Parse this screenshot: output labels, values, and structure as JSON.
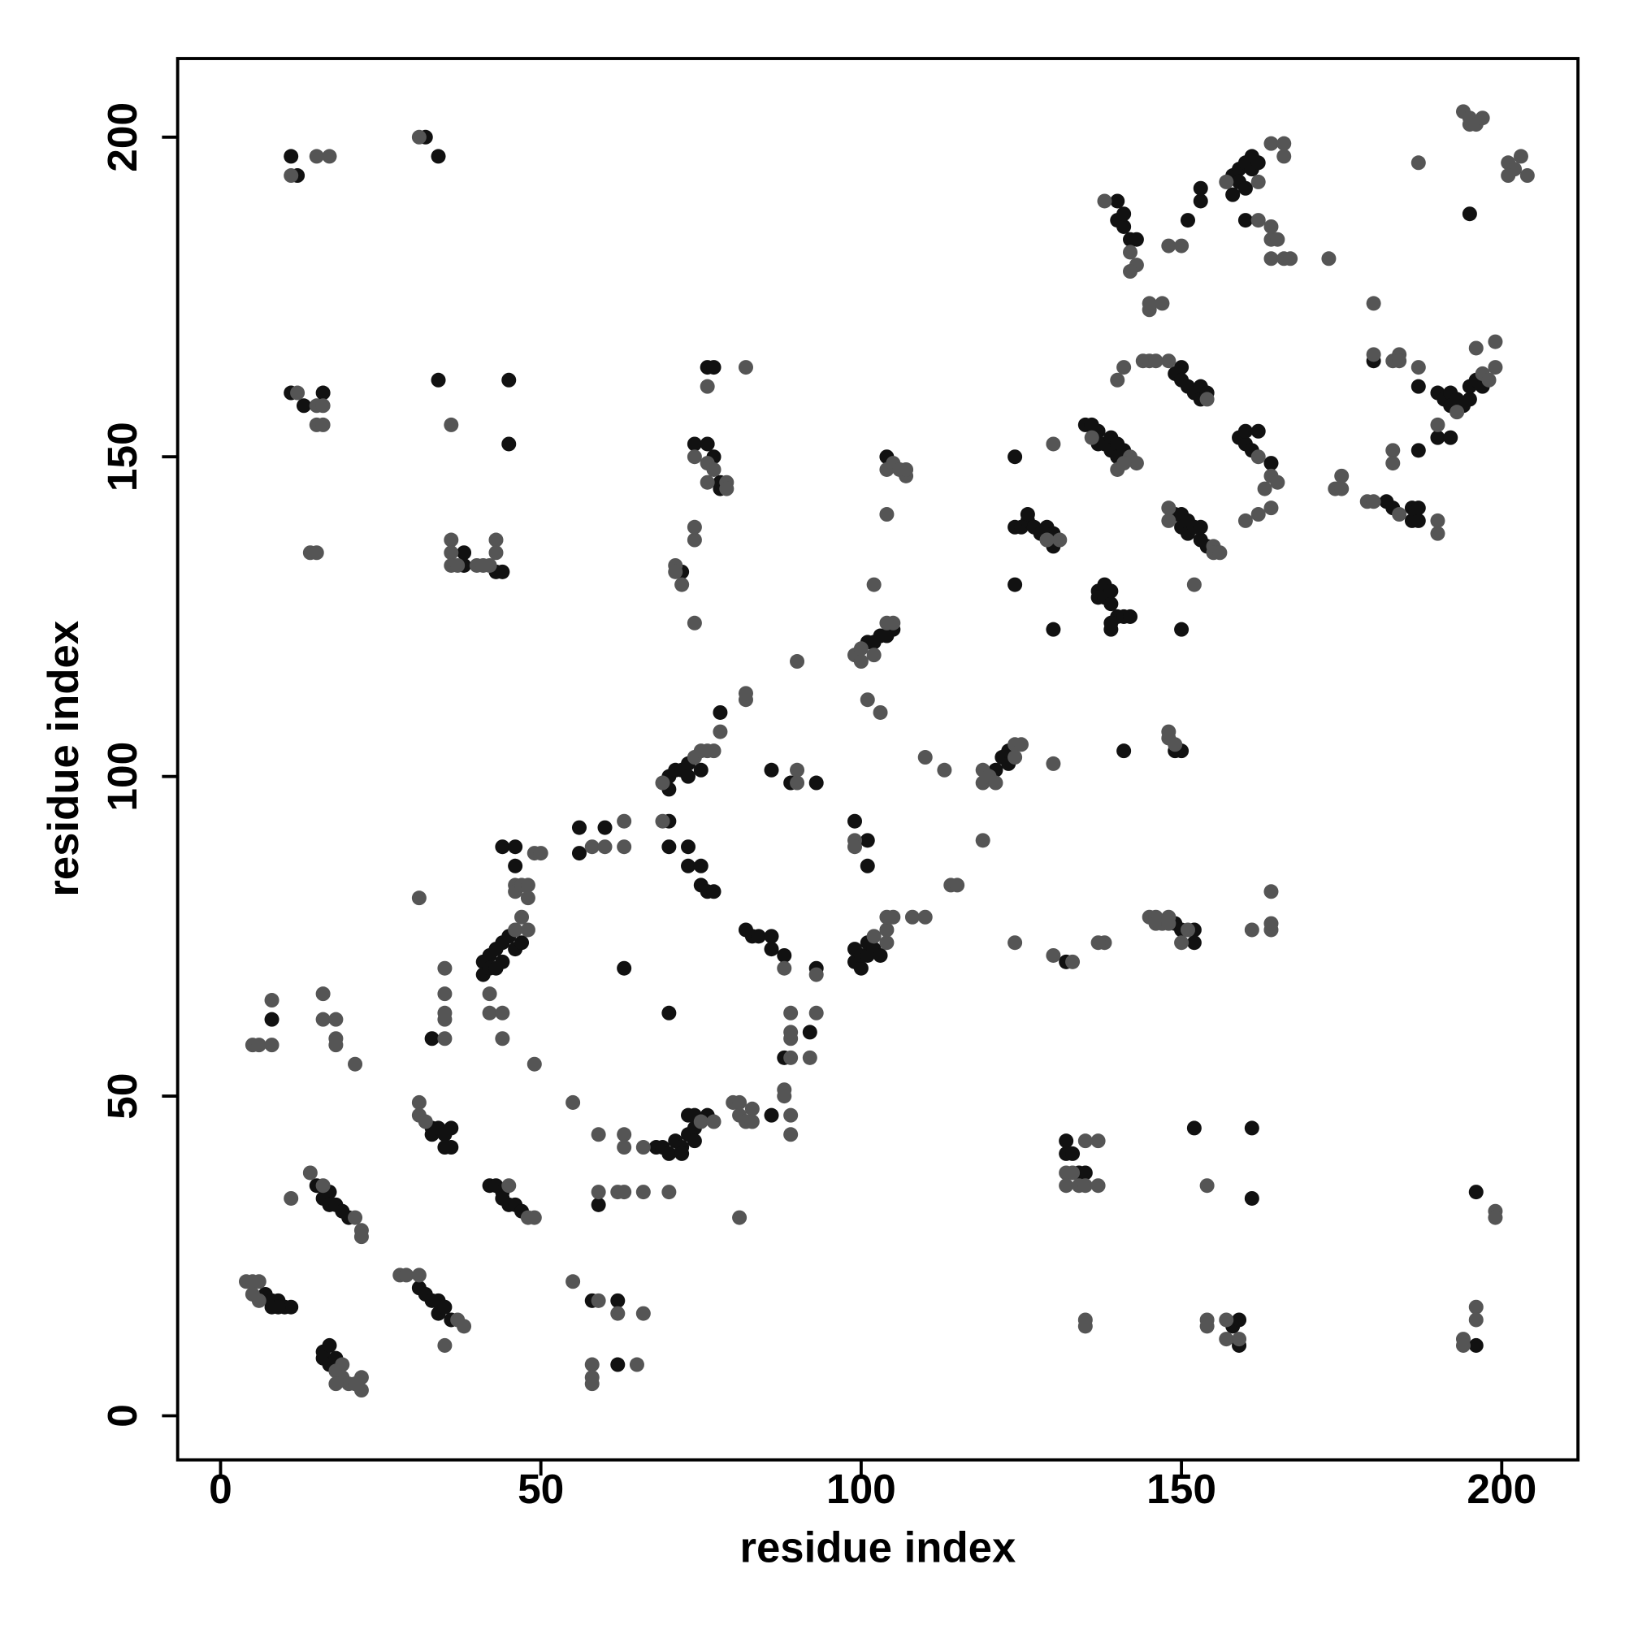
{
  "chart_data": {
    "type": "scatter",
    "xlabel": "residue index",
    "ylabel": "residue index",
    "xlim": [
      -6.7,
      211.9
    ],
    "ylim": [
      -6.9,
      212.3
    ],
    "xticks": [
      0,
      50,
      100,
      150,
      200
    ],
    "yticks": [
      0,
      50,
      100,
      150,
      200
    ],
    "grid": false,
    "series": [
      {
        "color": "#111111",
        "x": [
          7,
          8,
          9,
          10,
          11,
          8,
          9,
          8,
          16,
          16,
          17,
          17,
          18,
          15,
          16,
          17,
          17,
          18,
          19,
          20,
          31,
          32,
          33,
          34,
          34,
          35,
          36,
          33,
          33,
          34,
          35,
          35,
          36,
          36,
          33,
          42,
          43,
          44,
          44,
          45,
          46,
          47,
          41,
          41,
          42,
          42,
          43,
          43,
          44,
          44,
          45,
          46,
          47,
          44,
          46,
          46,
          56,
          56,
          60,
          70,
          63,
          68,
          69,
          70,
          71,
          72,
          72,
          73,
          74,
          74,
          74,
          76,
          73,
          59,
          62,
          58,
          62,
          70,
          70,
          71,
          72,
          73,
          73,
          75,
          78,
          70,
          70,
          73,
          73,
          75,
          75,
          76,
          77,
          72,
          74,
          76,
          77,
          78,
          78,
          76,
          77,
          82,
          83,
          84,
          86,
          86,
          88,
          93,
          86,
          89,
          93,
          86,
          88,
          92,
          99,
          99,
          100,
          100,
          101,
          101,
          102,
          103,
          99,
          101,
          101,
          101,
          102,
          103,
          104,
          105,
          104,
          121,
          122,
          123,
          123,
          124,
          125,
          126,
          126,
          127,
          128,
          129,
          130,
          130,
          124,
          124,
          130,
          132,
          132,
          132,
          133,
          134,
          135,
          135,
          136,
          137,
          137,
          138,
          139,
          139,
          140,
          140,
          141,
          137,
          137,
          138,
          138,
          139,
          139,
          140,
          141,
          142,
          139,
          139,
          140,
          140,
          141,
          141,
          142,
          143,
          141,
          149,
          150,
          150,
          151,
          152,
          153,
          153,
          154,
          149,
          150,
          150,
          151,
          151,
          152,
          153,
          153,
          154,
          150,
          149,
          150,
          152,
          152,
          149,
          150,
          151,
          153,
          153,
          152,
          161,
          161,
          158,
          159,
          159,
          158,
          158,
          159,
          159,
          160,
          160,
          161,
          161,
          162,
          160,
          159,
          160,
          160,
          161,
          162,
          164,
          180,
          182,
          183,
          186,
          186,
          187,
          187,
          187,
          187,
          190,
          191,
          192,
          192,
          193,
          194,
          195,
          195,
          196,
          197,
          190,
          192,
          195,
          196,
          196,
          11,
          12,
          32,
          34,
          11,
          16,
          13,
          34,
          45,
          45,
          38,
          38,
          43,
          44
        ],
        "y": [
          19,
          18,
          18,
          17,
          17,
          17,
          17,
          62,
          9,
          10,
          11,
          8,
          9,
          36,
          34,
          35,
          33,
          33,
          32,
          31,
          20,
          19,
          18,
          18,
          16,
          17,
          15,
          45,
          44,
          45,
          44,
          42,
          42,
          45,
          59,
          36,
          36,
          35,
          34,
          33,
          33,
          32,
          71,
          69,
          72,
          70,
          73,
          70,
          74,
          71,
          75,
          73,
          74,
          89,
          89,
          86,
          92,
          88,
          92,
          63,
          70,
          42,
          42,
          41,
          43,
          42,
          41,
          44,
          45,
          43,
          47,
          47,
          47,
          33,
          18,
          18,
          8,
          100,
          98,
          101,
          101,
          102,
          100,
          101,
          110,
          93,
          89,
          89,
          86,
          86,
          83,
          82,
          82,
          132,
          152,
          152,
          150,
          146,
          145,
          164,
          164,
          76,
          75,
          75,
          75,
          73,
          72,
          70,
          101,
          99,
          99,
          47,
          56,
          60,
          71,
          73,
          70,
          72,
          72,
          74,
          73,
          72,
          93,
          90,
          86,
          121,
          121,
          122,
          122,
          123,
          150,
          101,
          103,
          102,
          104,
          139,
          139,
          140,
          141,
          139,
          138,
          139,
          138,
          136,
          130,
          150,
          123,
          71,
          43,
          41,
          41,
          38,
          38,
          155,
          155,
          154,
          152,
          152,
          153,
          151,
          152,
          150,
          151,
          129,
          128,
          130,
          128,
          127,
          129,
          125,
          125,
          125,
          123,
          124,
          190,
          187,
          186,
          188,
          184,
          184,
          104,
          163,
          164,
          162,
          161,
          160,
          161,
          159,
          160,
          141,
          141,
          139,
          140,
          138,
          139,
          137,
          139,
          136,
          123,
          77,
          76,
          76,
          74,
          104,
          104,
          187,
          190,
          192,
          45,
          45,
          34,
          14,
          15,
          11,
          191,
          194,
          195,
          193,
          196,
          192,
          197,
          195,
          196,
          187,
          153,
          152,
          154,
          151,
          154,
          149,
          165,
          143,
          142,
          142,
          140,
          140,
          142,
          151,
          161,
          160,
          159,
          160,
          158,
          159,
          158,
          159,
          161,
          162,
          161,
          153,
          153,
          188,
          35,
          11,
          197,
          194,
          200,
          197,
          160,
          160,
          158,
          162,
          162,
          152,
          135,
          133,
          132,
          132
        ]
      },
      {
        "color": "#555555",
        "x": [
          4,
          5,
          6,
          5,
          6,
          5,
          6,
          8,
          8,
          19,
          18,
          19,
          20,
          21,
          22,
          22,
          18,
          14,
          16,
          21,
          22,
          22,
          11,
          28,
          29,
          31,
          37,
          38,
          35,
          31,
          31,
          32,
          45,
          48,
          49,
          16,
          16,
          18,
          18,
          18,
          21,
          31,
          35,
          35,
          35,
          35,
          35,
          46,
          42,
          42,
          44,
          44,
          46,
          46,
          47,
          48,
          48,
          49,
          50,
          47,
          48,
          58,
          60,
          63,
          63,
          49,
          55,
          59,
          63,
          63,
          66,
          75,
          77,
          59,
          62,
          63,
          66,
          70,
          59,
          62,
          66,
          58,
          58,
          58,
          65,
          55,
          69,
          74,
          75,
          76,
          77,
          78,
          69,
          71,
          71,
          72,
          74,
          74,
          74,
          74,
          76,
          77,
          79,
          79,
          76,
          76,
          82,
          81,
          80,
          81,
          81,
          82,
          83,
          83,
          88,
          88,
          89,
          89,
          89,
          89,
          89,
          89,
          92,
          93,
          88,
          93,
          82,
          82,
          90,
          90,
          90,
          102,
          104,
          104,
          104,
          105,
          108,
          110,
          99,
          99,
          99,
          100,
          100,
          102,
          105,
          104,
          102,
          101,
          103,
          104,
          105,
          106,
          107,
          107,
          104,
          110,
          113,
          114,
          115,
          119,
          119,
          119,
          120,
          121,
          124,
          125,
          124,
          130,
          129,
          131,
          130,
          124,
          130,
          133,
          132,
          133,
          132,
          134,
          135,
          135,
          137,
          137,
          135,
          135,
          136,
          142,
          143,
          140,
          141,
          138,
          142,
          143,
          142,
          140,
          141,
          138,
          137,
          145,
          145,
          147,
          144,
          145,
          146,
          148,
          154,
          148,
          148,
          155,
          155,
          156,
          152,
          145,
          146,
          146,
          147,
          148,
          148,
          150,
          151,
          148,
          148,
          149,
          148,
          150,
          154,
          154,
          154,
          157,
          157,
          159,
          157,
          162,
          162,
          164,
          166,
          166,
          164,
          164,
          165,
          164,
          166,
          167,
          162,
          164,
          165,
          163,
          164,
          160,
          162,
          161,
          164,
          164,
          164,
          173,
          174,
          175,
          175,
          179,
          180,
          184,
          190,
          190,
          180,
          180,
          183,
          184,
          184,
          183,
          183,
          187,
          187,
          197,
          198,
          196,
          199,
          199,
          190,
          193,
          194,
          195,
          195,
          196,
          197,
          201,
          202,
          203,
          204,
          201,
          194,
          194,
          196,
          196,
          199,
          199,
          11,
          15,
          17,
          31,
          12,
          15,
          15,
          16,
          16,
          14,
          15,
          36,
          36,
          36,
          36,
          37,
          40,
          41,
          42,
          43,
          43
        ],
        "y": [
          21,
          21,
          21,
          19,
          18,
          58,
          58,
          58,
          65,
          8,
          7,
          6,
          5,
          5,
          4,
          6,
          5,
          38,
          36,
          31,
          29,
          28,
          34,
          22,
          22,
          22,
          15,
          14,
          11,
          49,
          47,
          46,
          36,
          31,
          31,
          66,
          62,
          62,
          59,
          58,
          55,
          81,
          59,
          62,
          63,
          66,
          70,
          76,
          66,
          63,
          63,
          59,
          83,
          82,
          83,
          83,
          81,
          88,
          88,
          78,
          76,
          89,
          89,
          93,
          89,
          55,
          49,
          44,
          44,
          42,
          42,
          46,
          46,
          35,
          35,
          35,
          35,
          35,
          18,
          16,
          16,
          8,
          6,
          5,
          8,
          21,
          99,
          103,
          104,
          104,
          104,
          107,
          93,
          133,
          132,
          130,
          124,
          137,
          139,
          150,
          149,
          148,
          146,
          145,
          146,
          161,
          164,
          31,
          49,
          49,
          47,
          46,
          48,
          46,
          51,
          50,
          44,
          47,
          56,
          59,
          60,
          63,
          56,
          63,
          70,
          69,
          112,
          113,
          118,
          99,
          101,
          75,
          74,
          76,
          78,
          78,
          78,
          78,
          90,
          89,
          119,
          118,
          120,
          119,
          124,
          124,
          130,
          112,
          110,
          148,
          149,
          148,
          147,
          148,
          141,
          103,
          101,
          83,
          83,
          90,
          99,
          101,
          100,
          99,
          105,
          105,
          103,
          102,
          137,
          137,
          152,
          74,
          72,
          71,
          38,
          38,
          36,
          36,
          36,
          43,
          43,
          36,
          15,
          14,
          153,
          150,
          149,
          148,
          149,
          190,
          182,
          180,
          179,
          162,
          164,
          74,
          74,
          173,
          174,
          174,
          165,
          165,
          165,
          165,
          159,
          142,
          140,
          136,
          135,
          135,
          130,
          78,
          78,
          77,
          77,
          78,
          77,
          74,
          76,
          106,
          107,
          105,
          183,
          183,
          36,
          15,
          14,
          15,
          12,
          12,
          193,
          193,
          187,
          199,
          199,
          197,
          186,
          184,
          184,
          181,
          181,
          181,
          150,
          147,
          146,
          145,
          142,
          140,
          141,
          76,
          76,
          77,
          82,
          181,
          145,
          145,
          147,
          143,
          143,
          141,
          140,
          138,
          174,
          166,
          165,
          166,
          165,
          151,
          149,
          164,
          196,
          163,
          162,
          167,
          168,
          164,
          155,
          157,
          204,
          202,
          203,
          202,
          203,
          196,
          195,
          197,
          194,
          194,
          12,
          11,
          17,
          15,
          32,
          31,
          194,
          197,
          197,
          200,
          160,
          158,
          155,
          158,
          155,
          135,
          135,
          155,
          137,
          135,
          133,
          133,
          133,
          133,
          133,
          137,
          135
        ]
      }
    ]
  }
}
